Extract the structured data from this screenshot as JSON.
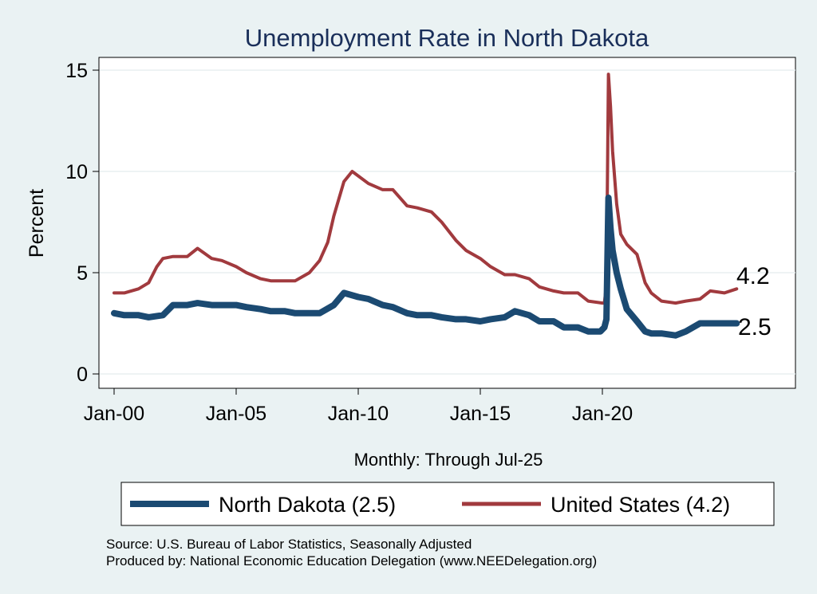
{
  "chart_data": {
    "type": "line",
    "title": "Unemployment Rate in North Dakota",
    "xlabel": "Monthly: Through Jul-25",
    "ylabel": "Percent",
    "x_range": [
      "2000-01",
      "2025-07"
    ],
    "x_tick_labels": [
      "Jan-00",
      "Jan-05",
      "Jan-10",
      "Jan-15",
      "Jan-20"
    ],
    "y_ticks": [
      0,
      5,
      10,
      15
    ],
    "ylim": [
      0,
      15
    ],
    "grid": true,
    "legend_position": "bottom",
    "series": [
      {
        "name": "North Dakota (2.5)",
        "end_label": "2.5",
        "color": "#1b4a72",
        "points": [
          [
            "2000-01",
            3.0
          ],
          [
            "2000-06",
            2.9
          ],
          [
            "2001-01",
            2.9
          ],
          [
            "2001-06",
            2.8
          ],
          [
            "2002-01",
            2.9
          ],
          [
            "2002-06",
            3.4
          ],
          [
            "2003-01",
            3.4
          ],
          [
            "2003-06",
            3.5
          ],
          [
            "2004-01",
            3.4
          ],
          [
            "2004-06",
            3.4
          ],
          [
            "2005-01",
            3.4
          ],
          [
            "2005-06",
            3.3
          ],
          [
            "2006-01",
            3.2
          ],
          [
            "2006-06",
            3.1
          ],
          [
            "2007-01",
            3.1
          ],
          [
            "2007-06",
            3.0
          ],
          [
            "2008-01",
            3.0
          ],
          [
            "2008-06",
            3.0
          ],
          [
            "2009-01",
            3.4
          ],
          [
            "2009-06",
            4.0
          ],
          [
            "2010-01",
            3.8
          ],
          [
            "2010-06",
            3.7
          ],
          [
            "2011-01",
            3.4
          ],
          [
            "2011-06",
            3.3
          ],
          [
            "2012-01",
            3.0
          ],
          [
            "2012-06",
            2.9
          ],
          [
            "2013-01",
            2.9
          ],
          [
            "2013-06",
            2.8
          ],
          [
            "2014-01",
            2.7
          ],
          [
            "2014-06",
            2.7
          ],
          [
            "2015-01",
            2.6
          ],
          [
            "2015-06",
            2.7
          ],
          [
            "2016-01",
            2.8
          ],
          [
            "2016-06",
            3.1
          ],
          [
            "2017-01",
            2.9
          ],
          [
            "2017-06",
            2.6
          ],
          [
            "2018-01",
            2.6
          ],
          [
            "2018-06",
            2.3
          ],
          [
            "2019-01",
            2.3
          ],
          [
            "2019-06",
            2.1
          ],
          [
            "2019-12",
            2.1
          ],
          [
            "2020-02",
            2.3
          ],
          [
            "2020-03",
            2.7
          ],
          [
            "2020-04",
            8.7
          ],
          [
            "2020-05",
            7.2
          ],
          [
            "2020-06",
            6.1
          ],
          [
            "2020-08",
            5.0
          ],
          [
            "2020-10",
            4.2
          ],
          [
            "2021-01",
            3.2
          ],
          [
            "2021-06",
            2.6
          ],
          [
            "2021-10",
            2.1
          ],
          [
            "2022-01",
            2.0
          ],
          [
            "2022-06",
            2.0
          ],
          [
            "2023-01",
            1.9
          ],
          [
            "2023-06",
            2.1
          ],
          [
            "2024-01",
            2.5
          ],
          [
            "2024-06",
            2.5
          ],
          [
            "2025-01",
            2.5
          ],
          [
            "2025-07",
            2.5
          ]
        ]
      },
      {
        "name": "United States (4.2)",
        "end_label": "4.2",
        "color": "#a13a3e",
        "points": [
          [
            "2000-01",
            4.0
          ],
          [
            "2000-06",
            4.0
          ],
          [
            "2001-01",
            4.2
          ],
          [
            "2001-06",
            4.5
          ],
          [
            "2001-10",
            5.3
          ],
          [
            "2002-01",
            5.7
          ],
          [
            "2002-06",
            5.8
          ],
          [
            "2003-01",
            5.8
          ],
          [
            "2003-06",
            6.2
          ],
          [
            "2004-01",
            5.7
          ],
          [
            "2004-06",
            5.6
          ],
          [
            "2005-01",
            5.3
          ],
          [
            "2005-06",
            5.0
          ],
          [
            "2006-01",
            4.7
          ],
          [
            "2006-06",
            4.6
          ],
          [
            "2007-01",
            4.6
          ],
          [
            "2007-06",
            4.6
          ],
          [
            "2008-01",
            5.0
          ],
          [
            "2008-06",
            5.6
          ],
          [
            "2008-10",
            6.5
          ],
          [
            "2009-01",
            7.8
          ],
          [
            "2009-06",
            9.5
          ],
          [
            "2009-10",
            10.0
          ],
          [
            "2010-06",
            9.4
          ],
          [
            "2011-01",
            9.1
          ],
          [
            "2011-06",
            9.1
          ],
          [
            "2012-01",
            8.3
          ],
          [
            "2012-06",
            8.2
          ],
          [
            "2013-01",
            8.0
          ],
          [
            "2013-06",
            7.5
          ],
          [
            "2014-01",
            6.6
          ],
          [
            "2014-06",
            6.1
          ],
          [
            "2015-01",
            5.7
          ],
          [
            "2015-06",
            5.3
          ],
          [
            "2016-01",
            4.9
          ],
          [
            "2016-06",
            4.9
          ],
          [
            "2017-01",
            4.7
          ],
          [
            "2017-06",
            4.3
          ],
          [
            "2018-01",
            4.1
          ],
          [
            "2018-06",
            4.0
          ],
          [
            "2019-01",
            4.0
          ],
          [
            "2019-06",
            3.6
          ],
          [
            "2020-01",
            3.5
          ],
          [
            "2020-02",
            3.5
          ],
          [
            "2020-03",
            4.4
          ],
          [
            "2020-04",
            14.8
          ],
          [
            "2020-05",
            13.2
          ],
          [
            "2020-06",
            11.0
          ],
          [
            "2020-08",
            8.4
          ],
          [
            "2020-10",
            6.9
          ],
          [
            "2021-01",
            6.4
          ],
          [
            "2021-06",
            5.9
          ],
          [
            "2021-10",
            4.5
          ],
          [
            "2022-01",
            4.0
          ],
          [
            "2022-06",
            3.6
          ],
          [
            "2023-01",
            3.5
          ],
          [
            "2023-06",
            3.6
          ],
          [
            "2024-01",
            3.7
          ],
          [
            "2024-06",
            4.1
          ],
          [
            "2025-01",
            4.0
          ],
          [
            "2025-07",
            4.2
          ]
        ]
      }
    ],
    "source_lines": [
      "Source: U.S. Bureau of Labor Statistics, Seasonally Adjusted",
      "Produced by: National Economic Education Delegation (www.NEEDelegation.org)"
    ]
  }
}
